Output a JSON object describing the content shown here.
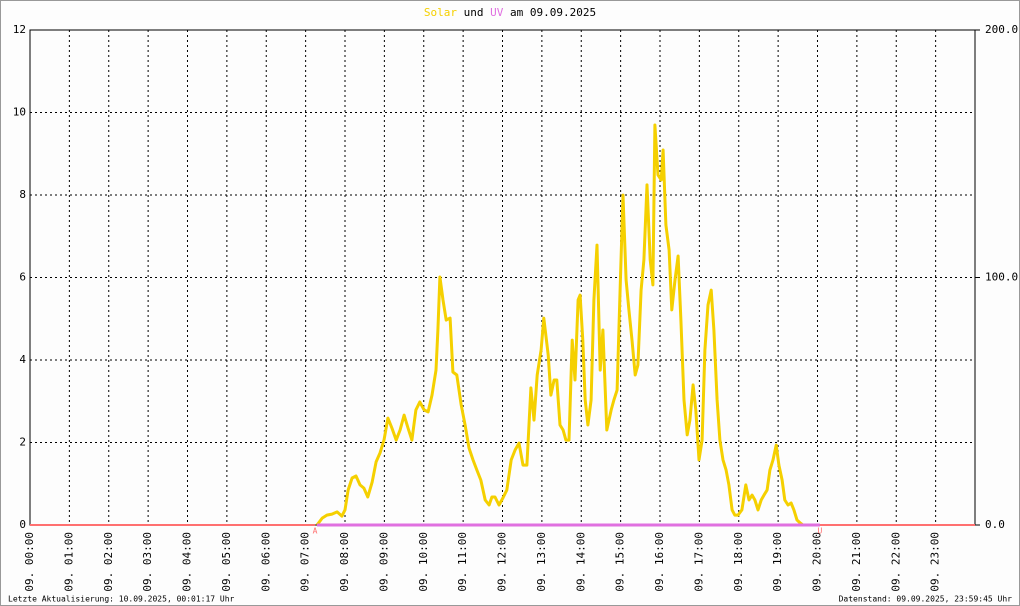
{
  "chart_data": {
    "type": "line",
    "title": {
      "joiner": "und",
      "suffix": "am 09.09.2025"
    },
    "footer_left": "Letzte Aktualisierung: 10.09.2025, 00:01:17 Uhr",
    "footer_right": "Datenstand: 09.09.2025, 23:59:45 Uhr",
    "xlim": [
      0,
      24
    ],
    "xticks": [
      {
        "value": 0,
        "label": "09. 00:00"
      },
      {
        "value": 1,
        "label": "09. 01:00"
      },
      {
        "value": 2,
        "label": "09. 02:00"
      },
      {
        "value": 3,
        "label": "09. 03:00"
      },
      {
        "value": 4,
        "label": "09. 04:00"
      },
      {
        "value": 5,
        "label": "09. 05:00"
      },
      {
        "value": 6,
        "label": "09. 06:00"
      },
      {
        "value": 7,
        "label": "09. 07:00"
      },
      {
        "value": 8,
        "label": "09. 08:00"
      },
      {
        "value": 9,
        "label": "09. 09:00"
      },
      {
        "value": 10,
        "label": "09. 10:00"
      },
      {
        "value": 11,
        "label": "09. 11:00"
      },
      {
        "value": 12,
        "label": "09. 12:00"
      },
      {
        "value": 13,
        "label": "09. 13:00"
      },
      {
        "value": 14,
        "label": "09. 14:00"
      },
      {
        "value": 15,
        "label": "09. 15:00"
      },
      {
        "value": 16,
        "label": "09. 16:00"
      },
      {
        "value": 17,
        "label": "09. 17:00"
      },
      {
        "value": 18,
        "label": "09. 18:00"
      },
      {
        "value": 19,
        "label": "09. 19:00"
      },
      {
        "value": 20,
        "label": "09. 20:00"
      },
      {
        "value": 21,
        "label": "09. 21:00"
      },
      {
        "value": 22,
        "label": "09. 22:00"
      },
      {
        "value": 23,
        "label": "09. 23:00"
      }
    ],
    "ylim": [
      0,
      12
    ],
    "yticks": [
      0,
      2,
      4,
      6,
      8,
      10,
      12
    ],
    "y2lim": [
      0,
      200
    ],
    "y2ticks": [
      {
        "value": 0,
        "label": "0.0"
      },
      {
        "value": 100,
        "label": "100.0"
      },
      {
        "value": 200,
        "label": "200.0"
      }
    ],
    "grid": true,
    "night_color": "#ff7070",
    "annotations": [
      {
        "text": "A",
        "x": 7.24
      },
      {
        "text": "U",
        "x": 20.06
      }
    ],
    "series": [
      {
        "name": "Solar",
        "color": "#f5d000",
        "axis": "y2",
        "x": [
          7.29,
          7.42,
          7.54,
          7.67,
          7.8,
          7.92,
          8.0,
          8.08,
          8.18,
          8.28,
          8.38,
          8.48,
          8.58,
          8.69,
          8.79,
          8.89,
          8.99,
          9.09,
          9.19,
          9.3,
          9.4,
          9.5,
          9.6,
          9.7,
          9.8,
          9.9,
          10.01,
          10.11,
          10.21,
          10.31,
          10.36,
          10.41,
          10.49,
          10.57,
          10.67,
          10.74,
          10.84,
          10.95,
          11.05,
          11.15,
          11.25,
          11.35,
          11.45,
          11.56,
          11.66,
          11.73,
          11.81,
          11.91,
          12.01,
          12.11,
          12.22,
          12.32,
          12.42,
          12.52,
          12.62,
          12.72,
          12.8,
          12.88,
          12.98,
          13.05,
          13.16,
          13.23,
          13.31,
          13.38,
          13.46,
          13.54,
          13.61,
          13.69,
          13.77,
          13.84,
          13.92,
          13.97,
          14.04,
          14.1,
          14.17,
          14.25,
          14.32,
          14.4,
          14.48,
          14.55,
          14.65,
          14.76,
          14.83,
          14.91,
          14.98,
          15.06,
          15.14,
          15.21,
          15.29,
          15.37,
          15.44,
          15.52,
          15.59,
          15.67,
          15.75,
          15.82,
          15.87,
          15.95,
          16.03,
          16.08,
          16.15,
          16.23,
          16.3,
          16.38,
          16.46,
          16.53,
          16.61,
          16.69,
          16.76,
          16.84,
          16.91,
          16.99,
          17.07,
          17.14,
          17.22,
          17.3,
          17.37,
          17.45,
          17.52,
          17.6,
          17.68,
          17.75,
          17.83,
          17.9,
          17.98,
          18.08,
          18.18,
          18.26,
          18.34,
          18.41,
          18.49,
          18.57,
          18.64,
          18.72,
          18.79,
          18.87,
          18.95,
          19.02,
          19.1,
          19.17,
          19.25,
          19.33,
          19.4,
          19.48,
          19.56,
          19.63
        ],
        "values": [
          0,
          2.8,
          4.0,
          4.4,
          5.3,
          3.6,
          6.1,
          14.1,
          19.0,
          19.8,
          16.2,
          14.9,
          11.3,
          17.4,
          25.5,
          29.1,
          34.3,
          43.2,
          39.2,
          34.3,
          38.4,
          44.4,
          39.2,
          34.3,
          46.5,
          49.7,
          46.5,
          45.7,
          52.5,
          62.6,
          78.8,
          100.2,
          90.9,
          82.8,
          83.6,
          61.8,
          60.6,
          48.5,
          40.4,
          31.1,
          26.3,
          22.2,
          18.2,
          10.1,
          8.1,
          11.3,
          11.3,
          8.1,
          10.9,
          14.1,
          26.3,
          30.3,
          33.1,
          24.2,
          24.2,
          55.4,
          42.4,
          60.6,
          70.7,
          83.6,
          68.7,
          52.5,
          58.6,
          58.6,
          40.4,
          38.4,
          34.3,
          34.3,
          74.7,
          58.6,
          90.9,
          92.9,
          74.7,
          50.5,
          40.4,
          50.5,
          90.9,
          113.1,
          62.6,
          78.8,
          38.4,
          46.5,
          50.5,
          54.5,
          90.9,
          133.3,
          99.0,
          86.9,
          74.7,
          60.6,
          64.6,
          94.9,
          107.1,
          137.4,
          107.1,
          97.0,
          161.6,
          141.4,
          139.4,
          151.5,
          121.2,
          111.1,
          86.9,
          99.0,
          108.7,
          82.8,
          50.5,
          36.4,
          42.4,
          56.6,
          46.5,
          26.3,
          34.3,
          70.7,
          88.9,
          94.9,
          78.8,
          50.5,
          34.3,
          26.3,
          22.2,
          16.2,
          6.1,
          4.0,
          4.0,
          6.1,
          16.2,
          10.1,
          12.1,
          10.1,
          6.1,
          10.1,
          12.1,
          14.1,
          22.2,
          26.3,
          32.3,
          24.2,
          18.2,
          10.1,
          8.1,
          8.9,
          6.1,
          2.0,
          0.8,
          0
        ]
      },
      {
        "name": "UV",
        "color": "#e070e0",
        "x": [
          7.29,
          20.06
        ],
        "values": [
          0,
          0
        ]
      }
    ]
  }
}
